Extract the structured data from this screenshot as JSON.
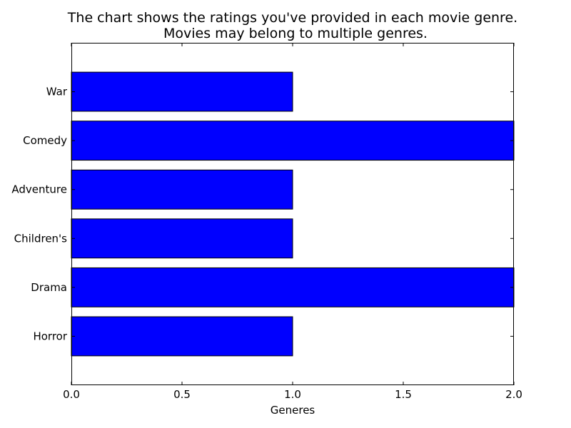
{
  "chart_data": {
    "type": "bar",
    "orientation": "horizontal",
    "title": "The chart shows the ratings you've provided in each movie genre.",
    "subtitle": "Movies may belong to multiple genres.",
    "xlabel": "Generes",
    "ylabel": "",
    "categories": [
      "Horror",
      "Drama",
      "Children's",
      "Adventure",
      "Comedy",
      "War"
    ],
    "values": [
      1,
      2,
      1,
      1,
      2,
      1
    ],
    "xlim": [
      0,
      2
    ],
    "xticks": [
      "0.0",
      "0.5",
      "1.0",
      "1.5",
      "2.0"
    ],
    "grid": false,
    "legend": "none",
    "bar_color": "#0000ff",
    "edge_color": "#000000"
  }
}
